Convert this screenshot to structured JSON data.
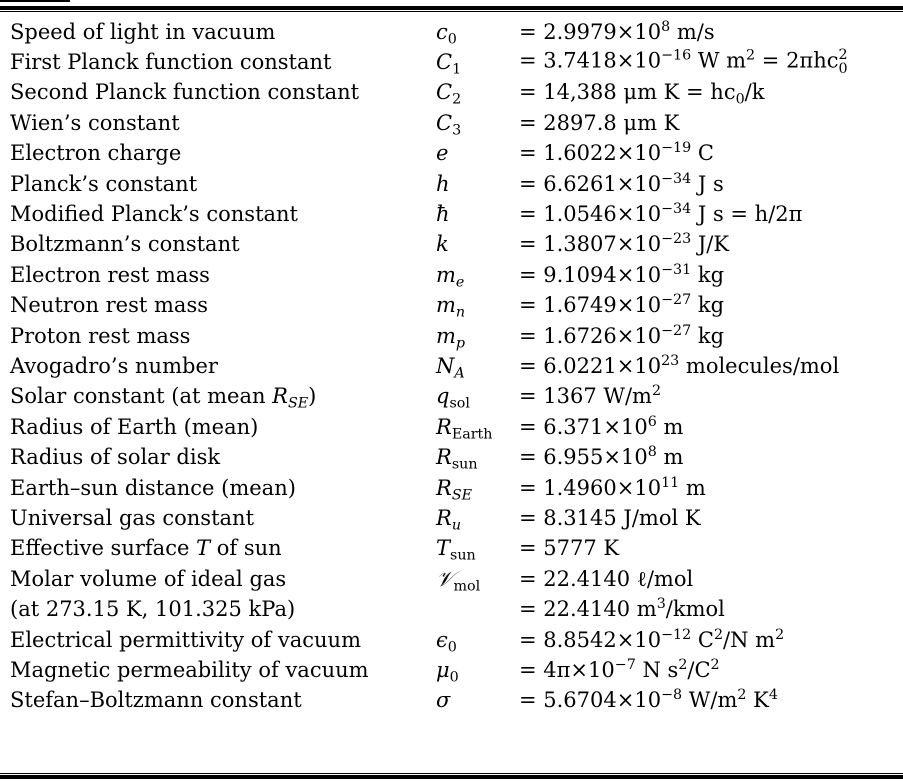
{
  "rows": [
    {
      "name": "Speed of light in vacuum",
      "symbol": "c",
      "symbol_sub": "0",
      "value": "= 2.9979×10",
      "value_exp": "8",
      "value_unit": " m/s"
    },
    {
      "name": "First Planck function constant",
      "symbol": "C",
      "symbol_sub": "1",
      "value": "= 3.7418×10",
      "value_exp": "−16",
      "value_unit": " W m",
      "value_unit_exp": "2",
      "value_tail": " = 2πhc",
      "value_tail_sub": "0",
      "value_tail_sup": "2"
    },
    {
      "name": "Second Planck function constant",
      "symbol": "C",
      "symbol_sub": "2",
      "value": "= 14,388 μm K = hc",
      "value_sub": "0",
      "value_tail": "/k"
    },
    {
      "name": "Wien’s constant",
      "symbol": "C",
      "symbol_sub": "3",
      "value": "= 2897.8 μm K"
    },
    {
      "name": "Electron charge",
      "symbol": "e",
      "value": "= 1.6022×10",
      "value_exp": "−19",
      "value_unit": " C"
    },
    {
      "name": "Planck’s constant",
      "symbol": "h",
      "value": "= 6.6261×10",
      "value_exp": "−34",
      "value_unit": " J s"
    },
    {
      "name": "Modified Planck’s constant",
      "symbol": "ħ",
      "value": "= 1.0546×10",
      "value_exp": "−34",
      "value_unit": " J s = h/2π"
    },
    {
      "name": "Boltzmann’s constant",
      "symbol": "k",
      "value": "= 1.3807×10",
      "value_exp": "−23",
      "value_unit": " J/K"
    },
    {
      "name": "Electron rest mass",
      "symbol": "m",
      "symbol_sub": "e",
      "value": "= 9.1094×10",
      "value_exp": "−31",
      "value_unit": " kg"
    },
    {
      "name": "Neutron rest mass",
      "symbol": "m",
      "symbol_sub": "n",
      "value": "= 1.6749×10",
      "value_exp": "−27",
      "value_unit": " kg"
    },
    {
      "name": "Proton rest mass",
      "symbol": "m",
      "symbol_sub": "p",
      "value": "= 1.6726×10",
      "value_exp": "−27",
      "value_unit": " kg"
    },
    {
      "name": "Avogadro’s number",
      "symbol": "N",
      "symbol_sub": "A",
      "value": "= 6.0221×10",
      "value_exp": "23",
      "value_unit": " molecules/mol"
    },
    {
      "name": "Solar constant (at mean ",
      "name_sym": "R",
      "name_sym_sub": "SE",
      "name_tail": ")",
      "symbol": "q",
      "symbol_sub": "sol",
      "value": "= 1367 W/m",
      "value_exp": "2"
    },
    {
      "name": "Radius of Earth (mean)",
      "symbol": "R",
      "symbol_sub": "Earth",
      "value": "= 6.371×10",
      "value_exp": "6",
      "value_unit": " m"
    },
    {
      "name": "Radius of solar disk",
      "symbol": "R",
      "symbol_sub": "sun",
      "value": "= 6.955×10",
      "value_exp": "8",
      "value_unit": " m"
    },
    {
      "name": "Earth–sun distance (mean)",
      "symbol": "R",
      "symbol_sub": "SE",
      "value": "= 1.4960×10",
      "value_exp": "11",
      "value_unit": " m"
    },
    {
      "name": "Universal gas constant",
      "symbol": "R",
      "symbol_sub": "u",
      "value": "= 8.3145 J/mol K"
    },
    {
      "name": "Effective surface ",
      "name_sym": "T",
      "name_tail": " of sun",
      "symbol": "T",
      "symbol_sub": "sun",
      "value": "= 5777 K"
    },
    {
      "name": "Molar volume of ideal gas",
      "symbol": "𝒱",
      "symbol_sub": "mol",
      "value": "= 22.4140 ℓ/mol"
    },
    {
      "name": "(at 273.15 K, 101.325 kPa)",
      "indent": true,
      "symbol": "",
      "value": "= 22.4140 m",
      "value_exp": "3",
      "value_unit": "/kmol"
    },
    {
      "name": "Electrical permittivity of vacuum",
      "symbol": "ϵ",
      "symbol_sub": "0",
      "value": "= 8.8542×10",
      "value_exp": "−12",
      "value_unit": " C",
      "value_unit_exp": "2",
      "value_tail": "/N m",
      "value_tail_sup": "2"
    },
    {
      "name": "Magnetic permeability of vacuum",
      "symbol": "μ",
      "symbol_sub": "0",
      "value": "= 4π×10",
      "value_exp": "−7",
      "value_unit": " N s",
      "value_unit_exp": "2",
      "value_tail": "/C",
      "value_tail_sup": "2"
    },
    {
      "name": "Stefan–Boltzmann constant",
      "symbol": "σ",
      "value": "= 5.6704×10",
      "value_exp": "−8",
      "value_unit": " W/m",
      "value_unit_exp": "2",
      "value_tail": " K",
      "value_tail_sup": "4"
    }
  ]
}
